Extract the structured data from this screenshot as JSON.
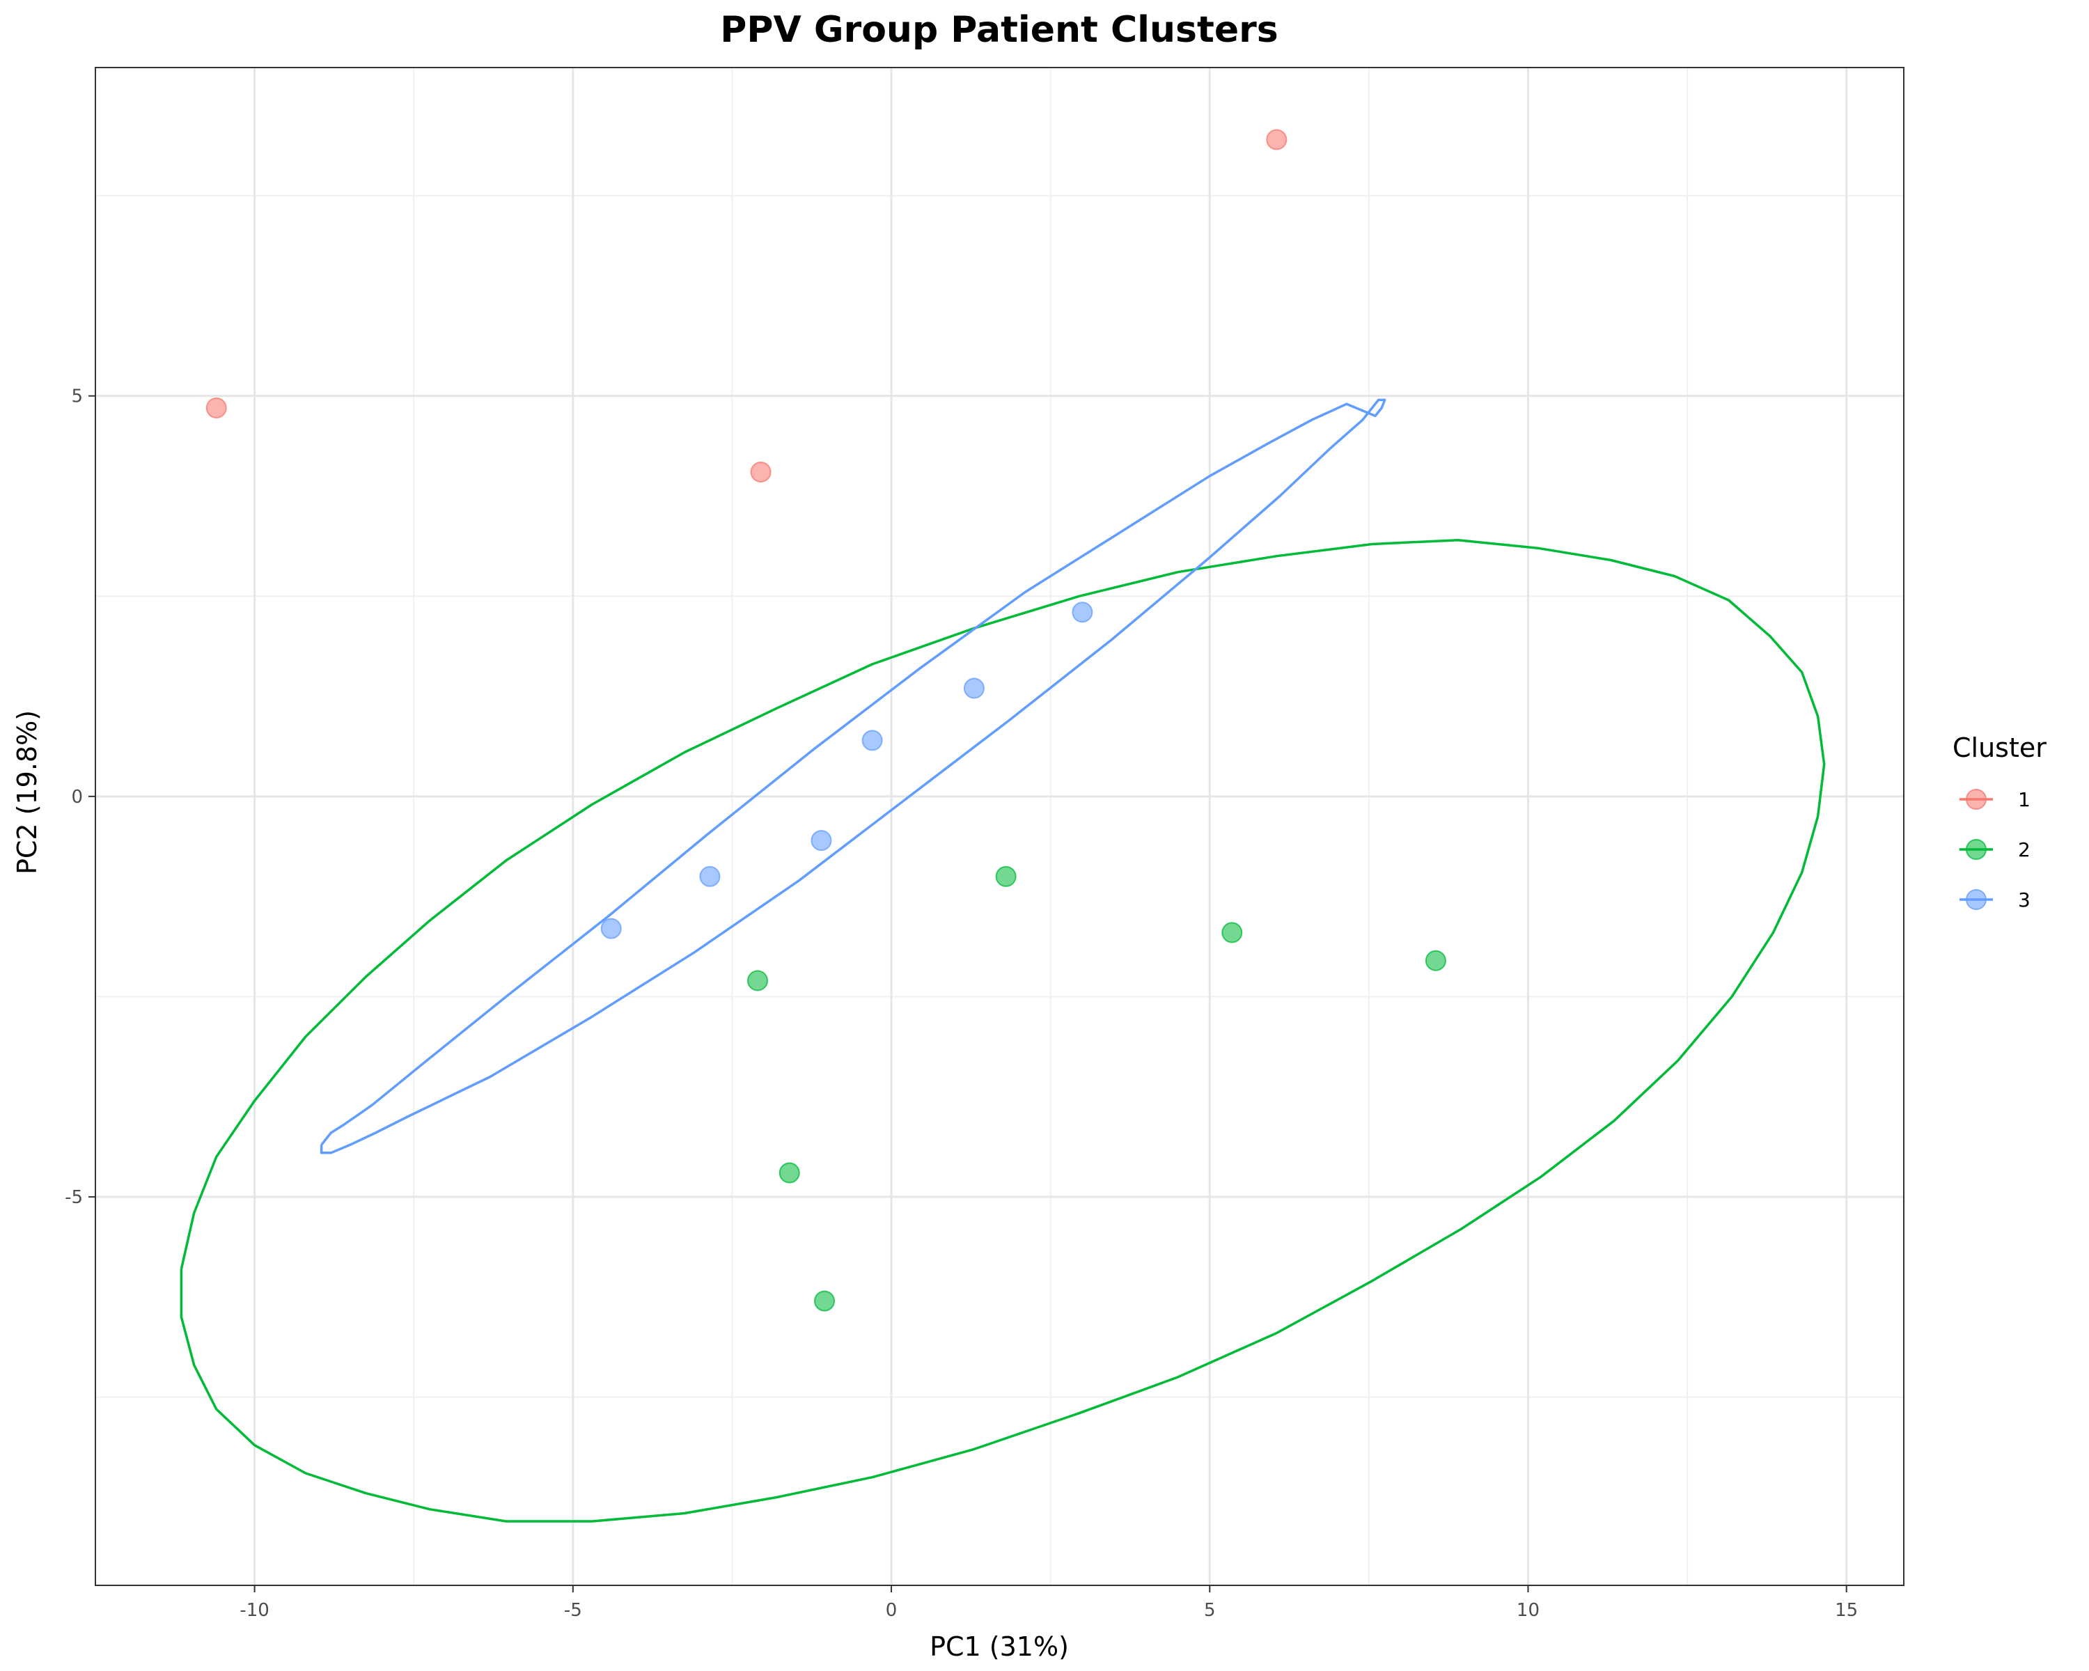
{
  "chart_data": {
    "type": "scatter",
    "title": "PPV Group Patient Clusters",
    "xlabel": "PC1 (31%)",
    "ylabel": "PC2 (19.8%)",
    "xlim": [
      -12.5,
      15.9
    ],
    "ylim": [
      -9.85,
      9.1
    ],
    "x_ticks": [
      -10,
      -5,
      0,
      5,
      10,
      15
    ],
    "x_tick_labels": [
      "-10",
      "-5",
      "0",
      "5",
      "10",
      "15"
    ],
    "y_ticks": [
      -5,
      0,
      5
    ],
    "y_tick_labels": [
      "-5",
      "0",
      "5"
    ],
    "grid": true,
    "legend": {
      "title": "Cluster",
      "position": "right"
    },
    "series": [
      {
        "name": "1",
        "color": "#F8766D",
        "points": [
          [
            -10.6,
            4.85
          ],
          [
            -2.05,
            4.05
          ],
          [
            6.05,
            8.2
          ]
        ],
        "ellipse": null
      },
      {
        "name": "2",
        "color": "#00BA38",
        "points": [
          [
            -2.1,
            -2.3
          ],
          [
            1.8,
            -1.0
          ],
          [
            5.35,
            -1.7
          ],
          [
            8.55,
            -2.05
          ],
          [
            -1.6,
            -4.7
          ],
          [
            -1.05,
            -6.3
          ]
        ],
        "ellipse": [
          [
            -11.15,
            -5.9
          ],
          [
            -10.95,
            -5.2
          ],
          [
            -10.6,
            -4.5
          ],
          [
            -10.0,
            -3.8
          ],
          [
            -9.2,
            -3.0
          ],
          [
            -8.25,
            -2.25
          ],
          [
            -7.25,
            -1.55
          ],
          [
            -6.05,
            -0.8
          ],
          [
            -4.7,
            -0.1
          ],
          [
            -3.25,
            0.55
          ],
          [
            -1.8,
            1.1
          ],
          [
            -0.3,
            1.65
          ],
          [
            1.3,
            2.1
          ],
          [
            2.95,
            2.5
          ],
          [
            4.5,
            2.8
          ],
          [
            6.05,
            3.0
          ],
          [
            7.55,
            3.15
          ],
          [
            8.9,
            3.2
          ],
          [
            10.15,
            3.1
          ],
          [
            11.3,
            2.95
          ],
          [
            12.3,
            2.75
          ],
          [
            13.15,
            2.45
          ],
          [
            13.8,
            2.0
          ],
          [
            14.3,
            1.55
          ],
          [
            14.55,
            1.0
          ],
          [
            14.65,
            0.4
          ],
          [
            14.55,
            -0.25
          ],
          [
            14.3,
            -0.95
          ],
          [
            13.85,
            -1.7
          ],
          [
            13.2,
            -2.5
          ],
          [
            12.35,
            -3.3
          ],
          [
            11.35,
            -4.05
          ],
          [
            10.2,
            -4.75
          ],
          [
            8.95,
            -5.4
          ],
          [
            7.55,
            -6.05
          ],
          [
            6.05,
            -6.7
          ],
          [
            4.5,
            -7.25
          ],
          [
            2.95,
            -7.7
          ],
          [
            1.3,
            -8.15
          ],
          [
            -0.3,
            -8.5
          ],
          [
            -1.8,
            -8.75
          ],
          [
            -3.25,
            -8.95
          ],
          [
            -4.7,
            -9.05
          ],
          [
            -6.05,
            -9.05
          ],
          [
            -7.25,
            -8.9
          ],
          [
            -8.25,
            -8.7
          ],
          [
            -9.2,
            -8.45
          ],
          [
            -10.0,
            -8.1
          ],
          [
            -10.6,
            -7.65
          ],
          [
            -10.95,
            -7.1
          ],
          [
            -11.15,
            -6.5
          ],
          [
            -11.15,
            -5.9
          ]
        ]
      },
      {
        "name": "3",
        "color": "#619CFF",
        "points": [
          [
            -4.4,
            -1.65
          ],
          [
            -2.85,
            -1.0
          ],
          [
            -1.1,
            -0.55
          ],
          [
            -0.3,
            0.7
          ],
          [
            1.3,
            1.35
          ],
          [
            3.0,
            2.3
          ]
        ],
        "ellipse": [
          [
            -8.95,
            -4.35
          ],
          [
            -8.95,
            -4.45
          ],
          [
            -8.8,
            -4.45
          ],
          [
            -8.5,
            -4.35
          ],
          [
            -8.1,
            -4.2
          ],
          [
            -7.6,
            -4.0
          ],
          [
            -6.3,
            -3.5
          ],
          [
            -4.7,
            -2.75
          ],
          [
            -3.1,
            -1.95
          ],
          [
            -1.45,
            -1.05
          ],
          [
            0.2,
            -0.05
          ],
          [
            1.85,
            0.95
          ],
          [
            3.45,
            1.95
          ],
          [
            4.95,
            2.95
          ],
          [
            6.1,
            3.75
          ],
          [
            6.9,
            4.35
          ],
          [
            7.4,
            4.7
          ],
          [
            7.65,
            4.95
          ],
          [
            7.75,
            4.95
          ],
          [
            7.7,
            4.85
          ],
          [
            7.6,
            4.75
          ],
          [
            7.15,
            4.9
          ],
          [
            6.6,
            4.7
          ],
          [
            5.9,
            4.4
          ],
          [
            5.0,
            4.0
          ],
          [
            3.7,
            3.35
          ],
          [
            2.1,
            2.55
          ],
          [
            0.45,
            1.6
          ],
          [
            -1.2,
            0.6
          ],
          [
            -2.85,
            -0.45
          ],
          [
            -4.45,
            -1.5
          ],
          [
            -6.05,
            -2.5
          ],
          [
            -7.3,
            -3.3
          ],
          [
            -8.15,
            -3.85
          ],
          [
            -8.6,
            -4.1
          ],
          [
            -8.8,
            -4.2
          ],
          [
            -8.95,
            -4.35
          ]
        ]
      }
    ]
  }
}
